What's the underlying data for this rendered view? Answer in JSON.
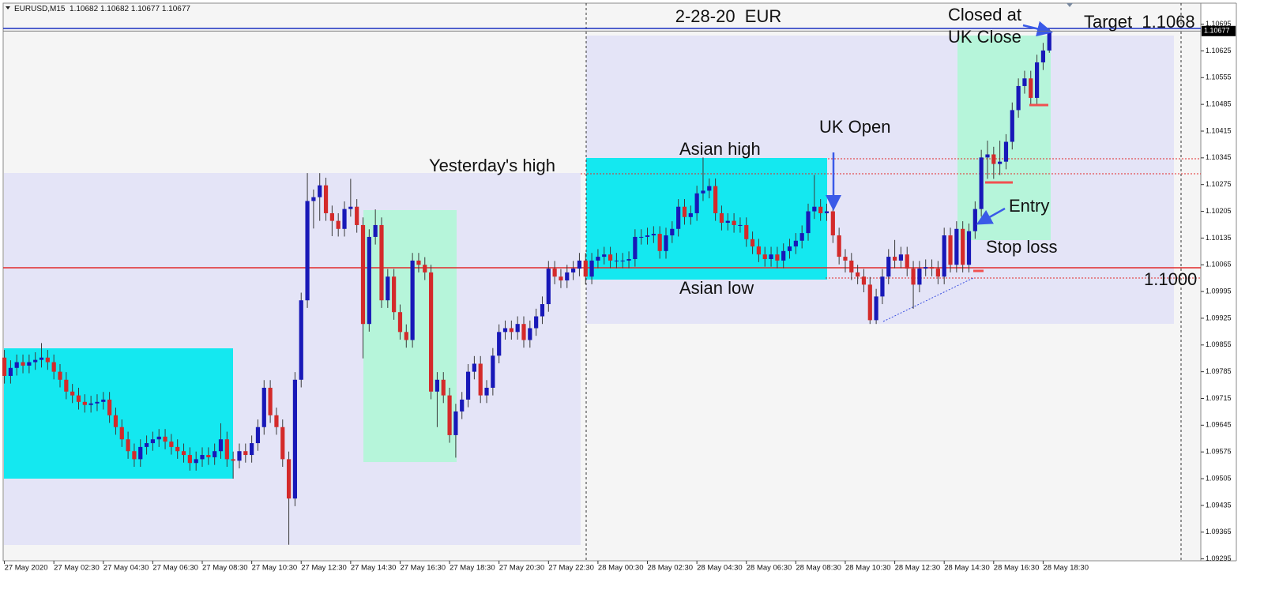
{
  "chart_data": {
    "type": "candlestick",
    "title": "2-28-20  EUR",
    "symbol": "EURUSD,M15",
    "header_prices": [
      1.10682,
      1.10682,
      1.10677,
      1.10677
    ],
    "current_price": 1.10677,
    "up_color": "#1818b8",
    "down_color": "#d42a2a",
    "wick_color": "#3a3a3a",
    "annotations": [
      "Yesterday's high",
      "Asian high",
      "Asian low",
      "UK Open",
      "Entry",
      "Stop loss",
      "Closed at",
      "UK Close",
      "Target  1.1068",
      "1.1000"
    ],
    "xlim": [
      -0.2,
      193.5
    ],
    "xticks": [
      {
        "value": 0,
        "label": "27 May 2020"
      },
      {
        "value": 8,
        "label": "27 May 02:30"
      },
      {
        "value": 16,
        "label": "27 May 04:30"
      },
      {
        "value": 24,
        "label": "27 May 06:30"
      },
      {
        "value": 32,
        "label": "27 May 08:30"
      },
      {
        "value": 40,
        "label": "27 May 10:30"
      },
      {
        "value": 48,
        "label": "27 May 12:30"
      },
      {
        "value": 56,
        "label": "27 May 14:30"
      },
      {
        "value": 64,
        "label": "27 May 16:30"
      },
      {
        "value": 72,
        "label": "27 May 18:30"
      },
      {
        "value": 80,
        "label": "27 May 20:30"
      },
      {
        "value": 88,
        "label": "27 May 22:30"
      },
      {
        "value": 96,
        "label": "28 May 00:30"
      },
      {
        "value": 104,
        "label": "28 May 02:30"
      },
      {
        "value": 112,
        "label": "28 May 04:30"
      },
      {
        "value": 120,
        "label": "28 May 06:30"
      },
      {
        "value": 128,
        "label": "28 May 08:30"
      },
      {
        "value": 136,
        "label": "28 May 10:30"
      },
      {
        "value": 144,
        "label": "28 May 12:30"
      },
      {
        "value": 152,
        "label": "28 May 14:30"
      },
      {
        "value": 160,
        "label": "28 May 16:30"
      },
      {
        "value": 168,
        "label": "28 May 18:30"
      }
    ],
    "ylim": [
      1.0929,
      1.1075
    ],
    "yticks": [
      1.09295,
      1.09365,
      1.09435,
      1.09505,
      1.09575,
      1.09645,
      1.09715,
      1.09785,
      1.09855,
      1.09925,
      1.09995,
      1.10065,
      1.10135,
      1.10205,
      1.10275,
      1.10345,
      1.10415,
      1.10485,
      1.10555,
      1.10625,
      1.10695
    ],
    "candles": [
      [
        1.09822,
        1.09842,
        1.09754,
        1.09774
      ],
      [
        1.09774,
        1.09815,
        1.09754,
        1.09795
      ],
      [
        1.09795,
        1.0983,
        1.09775,
        1.0981
      ],
      [
        1.0981,
        1.0983,
        1.09781,
        1.09801
      ],
      [
        1.09801,
        1.0983,
        1.09781,
        1.0981
      ],
      [
        1.0981,
        1.09836,
        1.0979,
        1.09816
      ],
      [
        1.09816,
        1.0986,
        1.09796,
        1.09822
      ],
      [
        1.09822,
        1.09842,
        1.0979,
        1.0981
      ],
      [
        1.0981,
        1.0983,
        1.09765,
        1.09785
      ],
      [
        1.09785,
        1.09805,
        1.09744,
        1.09764
      ],
      [
        1.09764,
        1.09784,
        1.09713,
        1.09733
      ],
      [
        1.09733,
        1.09753,
        1.09703,
        1.09723
      ],
      [
        1.09723,
        1.09743,
        1.09686,
        1.09706
      ],
      [
        1.09706,
        1.09726,
        1.09678,
        1.09698
      ],
      [
        1.09698,
        1.09722,
        1.09678,
        1.09702
      ],
      [
        1.09702,
        1.09726,
        1.09682,
        1.09706
      ],
      [
        1.09706,
        1.09732,
        1.09686,
        1.09712
      ],
      [
        1.09712,
        1.09732,
        1.09651,
        1.09671
      ],
      [
        1.09671,
        1.09691,
        1.0962,
        1.0964
      ],
      [
        1.0964,
        1.0966,
        1.09588,
        1.09608
      ],
      [
        1.09608,
        1.09628,
        1.09557,
        1.09577
      ],
      [
        1.09577,
        1.09597,
        1.09536,
        1.09556
      ],
      [
        1.09556,
        1.09608,
        1.09536,
        1.09588
      ],
      [
        1.09588,
        1.09618,
        1.09568,
        1.09598
      ],
      [
        1.09598,
        1.09628,
        1.09578,
        1.09608
      ],
      [
        1.09608,
        1.09635,
        1.09588,
        1.09615
      ],
      [
        1.09615,
        1.09635,
        1.09582,
        1.09602
      ],
      [
        1.09602,
        1.09622,
        1.09568,
        1.09588
      ],
      [
        1.09588,
        1.09608,
        1.09557,
        1.09577
      ],
      [
        1.09577,
        1.09597,
        1.09547,
        1.09567
      ],
      [
        1.09567,
        1.09587,
        1.09526,
        1.09546
      ],
      [
        1.09546,
        1.09576,
        1.09526,
        1.09556
      ],
      [
        1.09556,
        1.09587,
        1.09536,
        1.09567
      ],
      [
        1.09567,
        1.09587,
        1.09541,
        1.09561
      ],
      [
        1.09561,
        1.09597,
        1.09541,
        1.09577
      ],
      [
        1.09577,
        1.0965,
        1.09557,
        1.09608
      ],
      [
        1.09608,
        1.09628,
        1.09536,
        1.09556
      ],
      [
        1.09556,
        1.09576,
        1.09505,
        1.09552
      ],
      [
        1.09552,
        1.09597,
        1.09532,
        1.09577
      ],
      [
        1.09577,
        1.09597,
        1.09547,
        1.09567
      ],
      [
        1.09567,
        1.09618,
        1.09547,
        1.09598
      ],
      [
        1.09598,
        1.0966,
        1.09578,
        1.0964
      ],
      [
        1.0964,
        1.09763,
        1.0962,
        1.09743
      ],
      [
        1.09743,
        1.09763,
        1.09651,
        1.09671
      ],
      [
        1.09671,
        1.09691,
        1.0962,
        1.0964
      ],
      [
        1.0964,
        1.0966,
        1.09536,
        1.09556
      ],
      [
        1.09556,
        1.09576,
        1.09332,
        1.09453
      ],
      [
        1.09453,
        1.09784,
        1.09433,
        1.09764
      ],
      [
        1.09764,
        1.09992,
        1.09744,
        1.09972
      ],
      [
        1.09972,
        1.10305,
        1.09952,
        1.10232
      ],
      [
        1.10232,
        1.10262,
        1.1016,
        1.10242
      ],
      [
        1.10242,
        1.10305,
        1.1018,
        1.10273
      ],
      [
        1.10273,
        1.10293,
        1.1018,
        1.102
      ],
      [
        1.102,
        1.1022,
        1.1014,
        1.1018
      ],
      [
        1.1018,
        1.102,
        1.10139,
        1.10159
      ],
      [
        1.10159,
        1.10231,
        1.10139,
        1.10211
      ],
      [
        1.10211,
        1.1029,
        1.10191,
        1.10217
      ],
      [
        1.10217,
        1.10237,
        1.10149,
        1.10169
      ],
      [
        1.10169,
        1.10189,
        1.0982,
        1.0991
      ],
      [
        1.0991,
        1.10158,
        1.0989,
        1.10138
      ],
      [
        1.10138,
        1.1021,
        1.10118,
        1.10169
      ],
      [
        1.10169,
        1.10189,
        1.09952,
        1.09972
      ],
      [
        1.09972,
        1.10054,
        1.09952,
        1.10034
      ],
      [
        1.10034,
        1.10054,
        1.09921,
        1.09941
      ],
      [
        1.09941,
        1.09961,
        1.09869,
        1.09889
      ],
      [
        1.09889,
        1.09909,
        1.09848,
        1.09868
      ],
      [
        1.09868,
        1.10096,
        1.09848,
        1.10076
      ],
      [
        1.10076,
        1.10096,
        1.10045,
        1.10065
      ],
      [
        1.10065,
        1.10085,
        1.10025,
        1.10045
      ],
      [
        1.10045,
        1.10065,
        1.09713,
        1.09733
      ],
      [
        1.09733,
        1.09784,
        1.0964,
        1.09764
      ],
      [
        1.09764,
        1.09784,
        1.09703,
        1.09723
      ],
      [
        1.09723,
        1.09743,
        1.09599,
        1.09619
      ],
      [
        1.09619,
        1.09701,
        1.0956,
        1.09681
      ],
      [
        1.09681,
        1.09732,
        1.09661,
        1.09712
      ],
      [
        1.09712,
        1.09805,
        1.09692,
        1.09785
      ],
      [
        1.09785,
        1.09826,
        1.09765,
        1.09806
      ],
      [
        1.09806,
        1.09826,
        1.09703,
        1.09723
      ],
      [
        1.09723,
        1.09763,
        1.09703,
        1.09743
      ],
      [
        1.09743,
        1.09847,
        1.09723,
        1.09827
      ],
      [
        1.09827,
        1.09909,
        1.09807,
        1.09889
      ],
      [
        1.09889,
        1.09919,
        1.09869,
        1.09899
      ],
      [
        1.09899,
        1.09919,
        1.09869,
        1.09889
      ],
      [
        1.09889,
        1.0993,
        1.09869,
        1.0991
      ],
      [
        1.0991,
        1.0993,
        1.09848,
        1.09868
      ],
      [
        1.09868,
        1.09919,
        1.09848,
        1.09899
      ],
      [
        1.09899,
        1.0995,
        1.09879,
        1.0993
      ],
      [
        1.0993,
        1.09982,
        1.0991,
        1.09962
      ],
      [
        1.09962,
        1.10075,
        1.09942,
        1.10055
      ],
      [
        1.10055,
        1.10075,
        1.10014,
        1.10034
      ],
      [
        1.10034,
        1.10054,
        1.10004,
        1.10024
      ],
      [
        1.10024,
        1.10065,
        1.10004,
        1.10045
      ],
      [
        1.10045,
        1.10075,
        1.10025,
        1.10055
      ],
      [
        1.10055,
        1.10096,
        1.10035,
        1.10076
      ],
      [
        1.10076,
        1.10096,
        1.10014,
        1.10034
      ],
      [
        1.10034,
        1.10096,
        1.10014,
        1.10076
      ],
      [
        1.10076,
        1.10106,
        1.10056,
        1.10086
      ],
      [
        1.10086,
        1.10112,
        1.10066,
        1.10092
      ],
      [
        1.10092,
        1.10112,
        1.10056,
        1.10076
      ],
      [
        1.10076,
        1.10096,
        1.10056,
        1.10076
      ],
      [
        1.10076,
        1.10096,
        1.10056,
        1.10076
      ],
      [
        1.10076,
        1.101,
        1.10056,
        1.1008
      ],
      [
        1.1008,
        1.10158,
        1.1006,
        1.10138
      ],
      [
        1.10138,
        1.10158,
        1.10118,
        1.10138
      ],
      [
        1.10138,
        1.10162,
        1.10118,
        1.10142
      ],
      [
        1.10142,
        1.10166,
        1.10122,
        1.10146
      ],
      [
        1.10146,
        1.10166,
        1.10081,
        1.10101
      ],
      [
        1.10101,
        1.10162,
        1.10081,
        1.10142
      ],
      [
        1.10142,
        1.10179,
        1.10122,
        1.10159
      ],
      [
        1.10159,
        1.10237,
        1.10139,
        1.10217
      ],
      [
        1.10217,
        1.10237,
        1.1017,
        1.1019
      ],
      [
        1.1019,
        1.1022,
        1.1017,
        1.102
      ],
      [
        1.102,
        1.10272,
        1.1018,
        1.10252
      ],
      [
        1.10252,
        1.10346,
        1.10232,
        1.10259
      ],
      [
        1.10259,
        1.10291,
        1.10239,
        1.10271
      ],
      [
        1.10271,
        1.10291,
        1.1018,
        1.102
      ],
      [
        1.102,
        1.1022,
        1.10155,
        1.10175
      ],
      [
        1.10175,
        1.102,
        1.10155,
        1.1018
      ],
      [
        1.1018,
        1.102,
        1.10149,
        1.10169
      ],
      [
        1.10169,
        1.10189,
        1.10149,
        1.10169
      ],
      [
        1.10169,
        1.10189,
        1.10112,
        1.10132
      ],
      [
        1.10132,
        1.10152,
        1.10093,
        1.10113
      ],
      [
        1.10113,
        1.10133,
        1.10072,
        1.10092
      ],
      [
        1.10092,
        1.10112,
        1.1006,
        1.1008
      ],
      [
        1.1008,
        1.10112,
        1.1006,
        1.10092
      ],
      [
        1.10092,
        1.10112,
        1.10056,
        1.10076
      ],
      [
        1.10076,
        1.10121,
        1.10056,
        1.10101
      ],
      [
        1.10101,
        1.10133,
        1.10081,
        1.10113
      ],
      [
        1.10113,
        1.10148,
        1.10093,
        1.10128
      ],
      [
        1.10128,
        1.10168,
        1.10108,
        1.10148
      ],
      [
        1.10148,
        1.10225,
        1.10128,
        1.10205
      ],
      [
        1.10205,
        1.103,
        1.10185,
        1.10217
      ],
      [
        1.10217,
        1.10237,
        1.1018,
        1.102
      ],
      [
        1.102,
        1.10225,
        1.1018,
        1.10205
      ],
      [
        1.10205,
        1.10225,
        1.10122,
        1.10142
      ],
      [
        1.10142,
        1.10162,
        1.10066,
        1.10086
      ],
      [
        1.10086,
        1.10106,
        1.10045,
        1.10076
      ],
      [
        1.10076,
        1.10096,
        1.10025,
        1.10045
      ],
      [
        1.10045,
        1.10065,
        1.10014,
        1.10034
      ],
      [
        1.10034,
        1.10054,
        1.09993,
        1.10013
      ],
      [
        1.10013,
        1.10033,
        1.0991,
        1.0992
      ],
      [
        1.0992,
        1.10002,
        1.0991,
        1.09982
      ],
      [
        1.09982,
        1.10054,
        1.09962,
        1.10034
      ],
      [
        1.10034,
        1.10106,
        1.10014,
        1.10086
      ],
      [
        1.10086,
        1.1013,
        1.10056,
        1.10076
      ],
      [
        1.10076,
        1.10112,
        1.10056,
        1.10092
      ],
      [
        1.10092,
        1.10112,
        1.10035,
        1.10055
      ],
      [
        1.10055,
        1.10075,
        1.0995,
        1.10013
      ],
      [
        1.10013,
        1.10075,
        1.09993,
        1.10055
      ],
      [
        1.10055,
        1.10079,
        1.10035,
        1.10059
      ],
      [
        1.10059,
        1.10079,
        1.10035,
        1.10055
      ],
      [
        1.10055,
        1.10075,
        1.10014,
        1.10034
      ],
      [
        1.10034,
        1.10162,
        1.10014,
        1.10142
      ],
      [
        1.10142,
        1.10162,
        1.10045,
        1.10065
      ],
      [
        1.10065,
        1.10179,
        1.10045,
        1.10159
      ],
      [
        1.10159,
        1.10179,
        1.10045,
        1.10065
      ],
      [
        1.10065,
        1.10173,
        1.10045,
        1.10153
      ],
      [
        1.10153,
        1.10231,
        1.10133,
        1.10211
      ],
      [
        1.10211,
        1.10366,
        1.10191,
        1.10346
      ],
      [
        1.10346,
        1.1039,
        1.1029,
        1.10354
      ],
      [
        1.10354,
        1.10374,
        1.1029,
        1.10329
      ],
      [
        1.10329,
        1.1039,
        1.103,
        1.10335
      ],
      [
        1.10335,
        1.10407,
        1.10315,
        1.10387
      ],
      [
        1.10387,
        1.1049,
        1.10367,
        1.1047
      ],
      [
        1.1047,
        1.10553,
        1.1045,
        1.10533
      ],
      [
        1.10533,
        1.10573,
        1.10513,
        1.10553
      ],
      [
        1.10553,
        1.10573,
        1.10482,
        1.10502
      ],
      [
        1.10502,
        1.10615,
        1.10482,
        1.10595
      ],
      [
        1.10595,
        1.10646,
        1.10575,
        1.10626
      ],
      [
        1.10626,
        1.10682,
        1.1062,
        1.10677
      ]
    ]
  }
}
